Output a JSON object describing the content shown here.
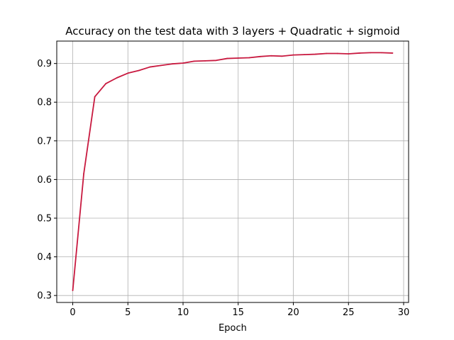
{
  "chart_data": {
    "type": "line",
    "title": "Accuracy on the test data with 3 layers + Quadratic + sigmoid",
    "xlabel": "Epoch",
    "ylabel": "",
    "xlim": [
      -1.45,
      30.45
    ],
    "ylim": [
      0.282,
      0.958
    ],
    "xticks": [
      0,
      5,
      10,
      15,
      20,
      25,
      30
    ],
    "yticks": [
      0.3,
      0.4,
      0.5,
      0.6,
      0.7,
      0.8,
      0.9
    ],
    "grid": true,
    "series": [
      {
        "name": "",
        "color": "#c8193f",
        "x": [
          0,
          1,
          2,
          3,
          4,
          5,
          6,
          7,
          8,
          9,
          10,
          11,
          12,
          13,
          14,
          15,
          16,
          17,
          18,
          19,
          20,
          21,
          22,
          23,
          24,
          25,
          26,
          27,
          28,
          29
        ],
        "y": [
          0.313,
          0.615,
          0.814,
          0.848,
          0.863,
          0.875,
          0.882,
          0.891,
          0.895,
          0.899,
          0.901,
          0.906,
          0.907,
          0.908,
          0.913,
          0.914,
          0.915,
          0.918,
          0.92,
          0.919,
          0.922,
          0.923,
          0.924,
          0.926,
          0.926,
          0.925,
          0.927,
          0.928,
          0.928,
          0.927
        ]
      }
    ]
  }
}
